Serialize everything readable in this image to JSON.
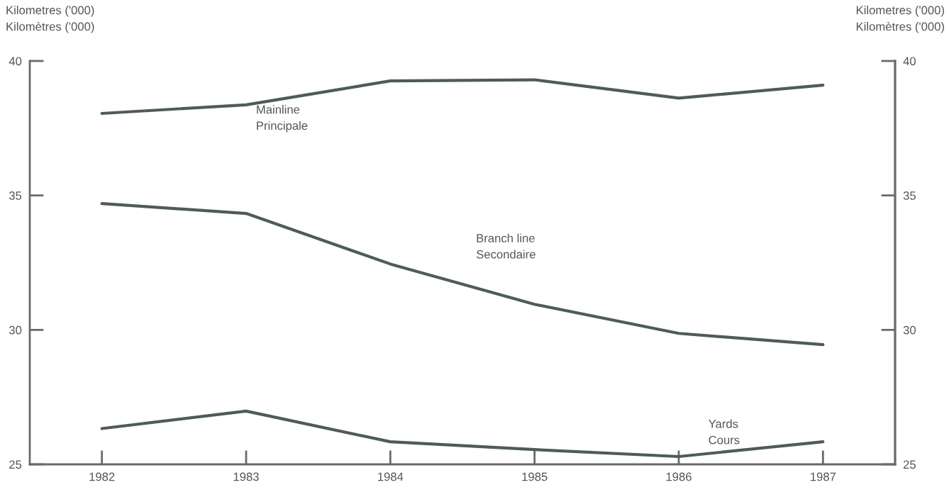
{
  "chart_data": {
    "type": "line",
    "ylabel": "Kilometres ('000)\nKilomètres ('000)",
    "y2label": "Kilometres ('000)\nKilomètres ('000)",
    "x": [
      1982,
      1983,
      1984,
      1985,
      1986,
      1987
    ],
    "series": [
      {
        "name": "Mainline\nPrincipale",
        "color": "#4f5c52",
        "values": [
          38.05,
          38.37,
          39.26,
          39.3,
          38.62,
          39.1
        ]
      },
      {
        "name": "Branch line\nSecondaire",
        "color": "#4f5c52",
        "values": [
          34.7,
          34.33,
          32.45,
          30.95,
          29.87,
          29.45
        ]
      },
      {
        "name": "Yards\nCours",
        "color": "#4f5c52",
        "values": [
          26.33,
          26.98,
          25.84,
          25.55,
          25.29,
          25.84
        ]
      }
    ],
    "xlim": [
      1981.5,
      1987.5
    ],
    "xticks": [
      1982,
      1983,
      1984,
      1985,
      1986,
      1987
    ],
    "ylim": [
      25,
      40
    ],
    "yticks": [
      25,
      30,
      35,
      40
    ],
    "y2lim": [
      25,
      40
    ],
    "y2ticks": [
      25,
      30,
      35,
      40
    ],
    "grid": false,
    "legend": false,
    "marker": "none",
    "line_style": "solid"
  }
}
